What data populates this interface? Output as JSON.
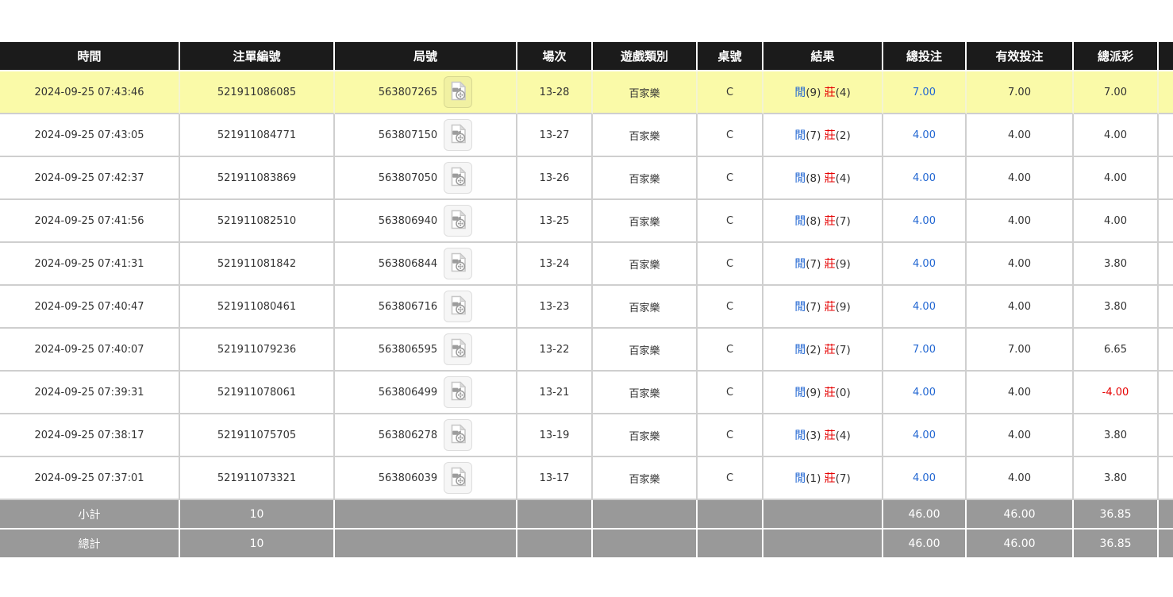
{
  "colors": {
    "header_bg": "#1b1b1b",
    "highlight_row": "#fafaa8",
    "footer_bg": "#999999",
    "grid": "#cfcfcf",
    "player_blue": "#2166d2",
    "banker_red": "#e60000",
    "link_blue": "#2166d2",
    "negative_red": "#e60000"
  },
  "table": {
    "columns": [
      "時間",
      "注單編號",
      "局號",
      "場次",
      "遊戲類別",
      "桌號",
      "結果",
      "總投注",
      "有效投注",
      "總派彩"
    ],
    "result_labels": {
      "player": "閒",
      "banker": "莊"
    },
    "icons": {
      "round_action": "video-replay-icon"
    },
    "rows": [
      {
        "time": "2024-09-25 07:43:46",
        "bet_id": "521911086085",
        "round": "563807265",
        "session": "13-28",
        "game_type": "百家樂",
        "table_no": "C",
        "player": "9",
        "banker": "4",
        "total_bet": "7.00",
        "valid_bet": "7.00",
        "payout": "7.00",
        "highlighted": true
      },
      {
        "time": "2024-09-25 07:43:05",
        "bet_id": "521911084771",
        "round": "563807150",
        "session": "13-27",
        "game_type": "百家樂",
        "table_no": "C",
        "player": "7",
        "banker": "2",
        "total_bet": "4.00",
        "valid_bet": "4.00",
        "payout": "4.00",
        "highlighted": false
      },
      {
        "time": "2024-09-25 07:42:37",
        "bet_id": "521911083869",
        "round": "563807050",
        "session": "13-26",
        "game_type": "百家樂",
        "table_no": "C",
        "player": "8",
        "banker": "4",
        "total_bet": "4.00",
        "valid_bet": "4.00",
        "payout": "4.00",
        "highlighted": false
      },
      {
        "time": "2024-09-25 07:41:56",
        "bet_id": "521911082510",
        "round": "563806940",
        "session": "13-25",
        "game_type": "百家樂",
        "table_no": "C",
        "player": "8",
        "banker": "7",
        "total_bet": "4.00",
        "valid_bet": "4.00",
        "payout": "4.00",
        "highlighted": false
      },
      {
        "time": "2024-09-25 07:41:31",
        "bet_id": "521911081842",
        "round": "563806844",
        "session": "13-24",
        "game_type": "百家樂",
        "table_no": "C",
        "player": "7",
        "banker": "9",
        "total_bet": "4.00",
        "valid_bet": "4.00",
        "payout": "3.80",
        "highlighted": false
      },
      {
        "time": "2024-09-25 07:40:47",
        "bet_id": "521911080461",
        "round": "563806716",
        "session": "13-23",
        "game_type": "百家樂",
        "table_no": "C",
        "player": "7",
        "banker": "9",
        "total_bet": "4.00",
        "valid_bet": "4.00",
        "payout": "3.80",
        "highlighted": false
      },
      {
        "time": "2024-09-25 07:40:07",
        "bet_id": "521911079236",
        "round": "563806595",
        "session": "13-22",
        "game_type": "百家樂",
        "table_no": "C",
        "player": "2",
        "banker": "7",
        "total_bet": "7.00",
        "valid_bet": "7.00",
        "payout": "6.65",
        "highlighted": false
      },
      {
        "time": "2024-09-25 07:39:31",
        "bet_id": "521911078061",
        "round": "563806499",
        "session": "13-21",
        "game_type": "百家樂",
        "table_no": "C",
        "player": "9",
        "banker": "0",
        "total_bet": "4.00",
        "valid_bet": "4.00",
        "payout": "-4.00",
        "highlighted": false
      },
      {
        "time": "2024-09-25 07:38:17",
        "bet_id": "521911075705",
        "round": "563806278",
        "session": "13-19",
        "game_type": "百家樂",
        "table_no": "C",
        "player": "3",
        "banker": "4",
        "total_bet": "4.00",
        "valid_bet": "4.00",
        "payout": "3.80",
        "highlighted": false
      },
      {
        "time": "2024-09-25 07:37:01",
        "bet_id": "521911073321",
        "round": "563806039",
        "session": "13-17",
        "game_type": "百家樂",
        "table_no": "C",
        "player": "1",
        "banker": "7",
        "total_bet": "4.00",
        "valid_bet": "4.00",
        "payout": "3.80",
        "highlighted": false
      }
    ],
    "footer": [
      {
        "label": "小計",
        "count": "10",
        "total_bet": "46.00",
        "valid_bet": "46.00",
        "payout": "36.85"
      },
      {
        "label": "總計",
        "count": "10",
        "total_bet": "46.00",
        "valid_bet": "46.00",
        "payout": "36.85"
      }
    ]
  }
}
